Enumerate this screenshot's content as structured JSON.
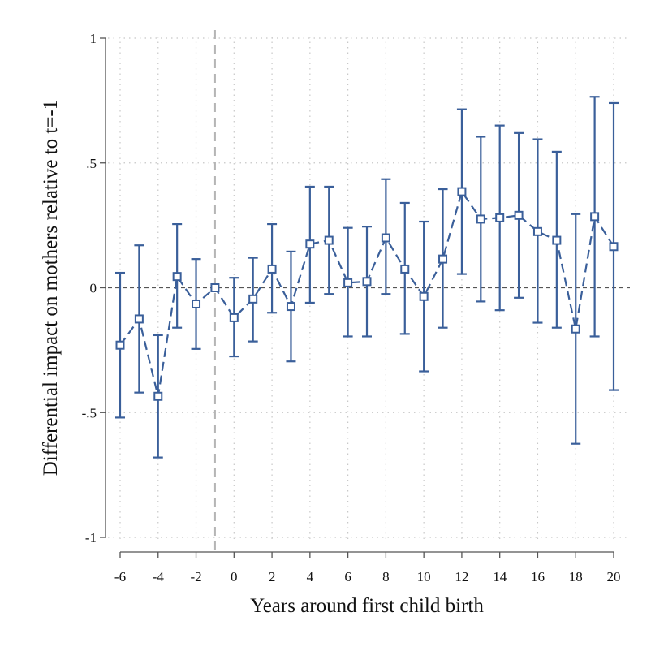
{
  "chart_data": {
    "type": "line",
    "xlabel": "Years around first child birth",
    "ylabel": "Differential impact on mothers relative to t=-1",
    "xlim": [
      -6,
      20
    ],
    "ylim": [
      -1,
      1
    ],
    "x_ticks": [
      -6,
      -4,
      -2,
      0,
      2,
      4,
      6,
      8,
      10,
      12,
      14,
      16,
      18,
      20
    ],
    "y_ticks": [
      {
        "value": 1,
        "label": "1"
      },
      {
        "value": 0.5,
        "label": ".5"
      },
      {
        "value": 0,
        "label": "0"
      },
      {
        "value": -0.5,
        "label": "-.5"
      },
      {
        "value": -1,
        "label": "-1"
      }
    ],
    "grid": true,
    "reference_lines": {
      "horizontal_y": 0,
      "vertical_x": -1
    },
    "series": [
      {
        "marker": "hollow-square",
        "line_style": "dashed",
        "error_bars": "95% confidence interval",
        "points": [
          {
            "x": -6,
            "y": -0.23,
            "lo": -0.52,
            "hi": 0.06
          },
          {
            "x": -5,
            "y": -0.125,
            "lo": -0.42,
            "hi": 0.17
          },
          {
            "x": -4,
            "y": -0.435,
            "lo": -0.68,
            "hi": -0.19
          },
          {
            "x": -3,
            "y": 0.045,
            "lo": -0.16,
            "hi": 0.255
          },
          {
            "x": -2,
            "y": -0.065,
            "lo": -0.245,
            "hi": 0.115
          },
          {
            "x": -1,
            "y": 0.0,
            "lo": 0.0,
            "hi": 0.0
          },
          {
            "x": 0,
            "y": -0.12,
            "lo": -0.275,
            "hi": 0.04
          },
          {
            "x": 1,
            "y": -0.045,
            "lo": -0.215,
            "hi": 0.12
          },
          {
            "x": 2,
            "y": 0.075,
            "lo": -0.1,
            "hi": 0.255
          },
          {
            "x": 3,
            "y": -0.075,
            "lo": -0.295,
            "hi": 0.145
          },
          {
            "x": 4,
            "y": 0.175,
            "lo": -0.06,
            "hi": 0.405
          },
          {
            "x": 5,
            "y": 0.19,
            "lo": -0.025,
            "hi": 0.405
          },
          {
            "x": 6,
            "y": 0.02,
            "lo": -0.195,
            "hi": 0.24
          },
          {
            "x": 7,
            "y": 0.025,
            "lo": -0.195,
            "hi": 0.245
          },
          {
            "x": 8,
            "y": 0.2,
            "lo": -0.025,
            "hi": 0.435
          },
          {
            "x": 9,
            "y": 0.075,
            "lo": -0.185,
            "hi": 0.34
          },
          {
            "x": 10,
            "y": -0.035,
            "lo": -0.335,
            "hi": 0.265
          },
          {
            "x": 11,
            "y": 0.115,
            "lo": -0.16,
            "hi": 0.395
          },
          {
            "x": 12,
            "y": 0.385,
            "lo": 0.055,
            "hi": 0.715
          },
          {
            "x": 13,
            "y": 0.275,
            "lo": -0.055,
            "hi": 0.605
          },
          {
            "x": 14,
            "y": 0.28,
            "lo": -0.09,
            "hi": 0.65
          },
          {
            "x": 15,
            "y": 0.29,
            "lo": -0.04,
            "hi": 0.62
          },
          {
            "x": 16,
            "y": 0.225,
            "lo": -0.14,
            "hi": 0.595
          },
          {
            "x": 17,
            "y": 0.19,
            "lo": -0.16,
            "hi": 0.545
          },
          {
            "x": 18,
            "y": -0.165,
            "lo": -0.625,
            "hi": 0.295
          },
          {
            "x": 19,
            "y": 0.285,
            "lo": -0.195,
            "hi": 0.765
          },
          {
            "x": 20,
            "y": 0.165,
            "lo": -0.41,
            "hi": 0.74
          }
        ]
      }
    ]
  },
  "colors": {
    "series": "#3a5f9a",
    "axis": "#555555",
    "grid": "#c8c8c8",
    "zero_line": "#555555",
    "vline": "#b5b5b5"
  }
}
